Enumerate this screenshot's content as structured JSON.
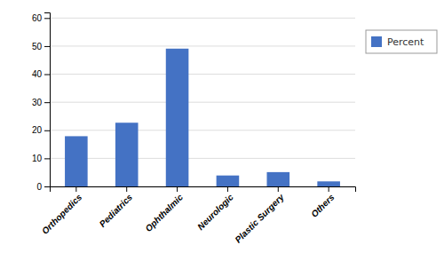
{
  "chart_data": {
    "type": "bar",
    "categories": [
      "Orthopedics",
      "Pediatrics",
      "Ophthalmic",
      "Neurologic",
      "Plastic Surgery",
      "Others"
    ],
    "series": [
      {
        "name": "Percent",
        "color": "#4472C4",
        "values": [
          17.9,
          22.7,
          49.1,
          3.9,
          5.1,
          1.8
        ]
      }
    ],
    "ylim": [
      0,
      62
    ],
    "yticks": [
      0,
      10,
      20,
      30,
      40,
      50,
      60
    ],
    "grid": true,
    "legend": "right"
  }
}
